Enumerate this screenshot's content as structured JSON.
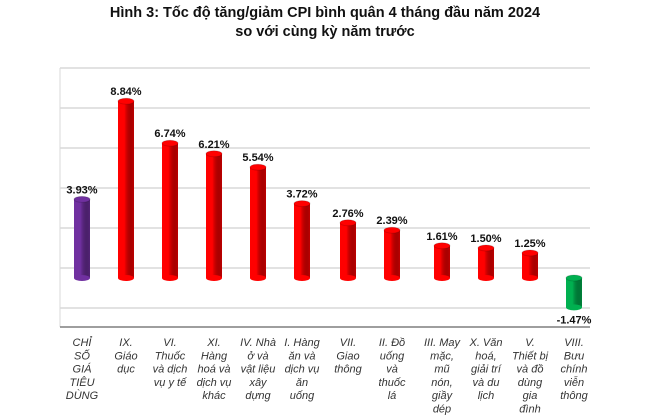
{
  "chart_data": {
    "type": "bar",
    "title": [
      "Hình 3: Tốc độ tăng/giảm CPI bình quân 4 tháng đầu năm 2024",
      "so với cùng kỳ năm trước"
    ],
    "categories": [
      [
        "CHỈ",
        "SỐ",
        "GIÁ",
        "TIÊU",
        "DÙNG"
      ],
      [
        "IX.",
        "Giáo",
        "dục"
      ],
      [
        "VI.",
        "Thuốc",
        "và dịch",
        "vụ y tế"
      ],
      [
        "XI.",
        "Hàng",
        "hoá và",
        "dịch vụ",
        "khác"
      ],
      [
        "IV. Nhà",
        "ở và",
        "vật liệu",
        "xây",
        "dựng"
      ],
      [
        "I. Hàng",
        "ăn và",
        "dịch vụ",
        "ăn",
        "uống"
      ],
      [
        "VII.",
        "Giao",
        "thông"
      ],
      [
        "II. Đồ",
        "uống",
        "và",
        "thuốc",
        "lá"
      ],
      [
        "III. May",
        "mặc,",
        "mũ",
        "nón,",
        "giầy",
        "dép"
      ],
      [
        "X. Văn",
        "hoá,",
        "giải trí",
        "và du",
        "lịch"
      ],
      [
        "V.",
        "Thiết bị",
        "và đồ",
        "dùng",
        "gia",
        "đình"
      ],
      [
        "VIII.",
        "Bưu",
        "chính",
        "viễn",
        "thông"
      ]
    ],
    "values": [
      3.93,
      8.84,
      6.74,
      6.21,
      5.54,
      3.72,
      2.76,
      2.39,
      1.61,
      1.5,
      1.25,
      -1.47
    ],
    "labels": [
      "3.93%",
      "8.84%",
      "6.74%",
      "6.21%",
      "5.54%",
      "3.72%",
      "2.76%",
      "2.39%",
      "1.61%",
      "1.50%",
      "1.25%",
      "-1.47%"
    ],
    "colors": [
      "#7030a0",
      "#ff0000",
      "#ff0000",
      "#ff0000",
      "#ff0000",
      "#ff0000",
      "#ff0000",
      "#ff0000",
      "#ff0000",
      "#ff0000",
      "#ff0000",
      "#00b050"
    ],
    "ylim": [
      -2.5,
      10
    ],
    "grid": true,
    "gridline_step": 2,
    "bar_style": "3d-cylinder",
    "xlabel": "",
    "ylabel": ""
  }
}
